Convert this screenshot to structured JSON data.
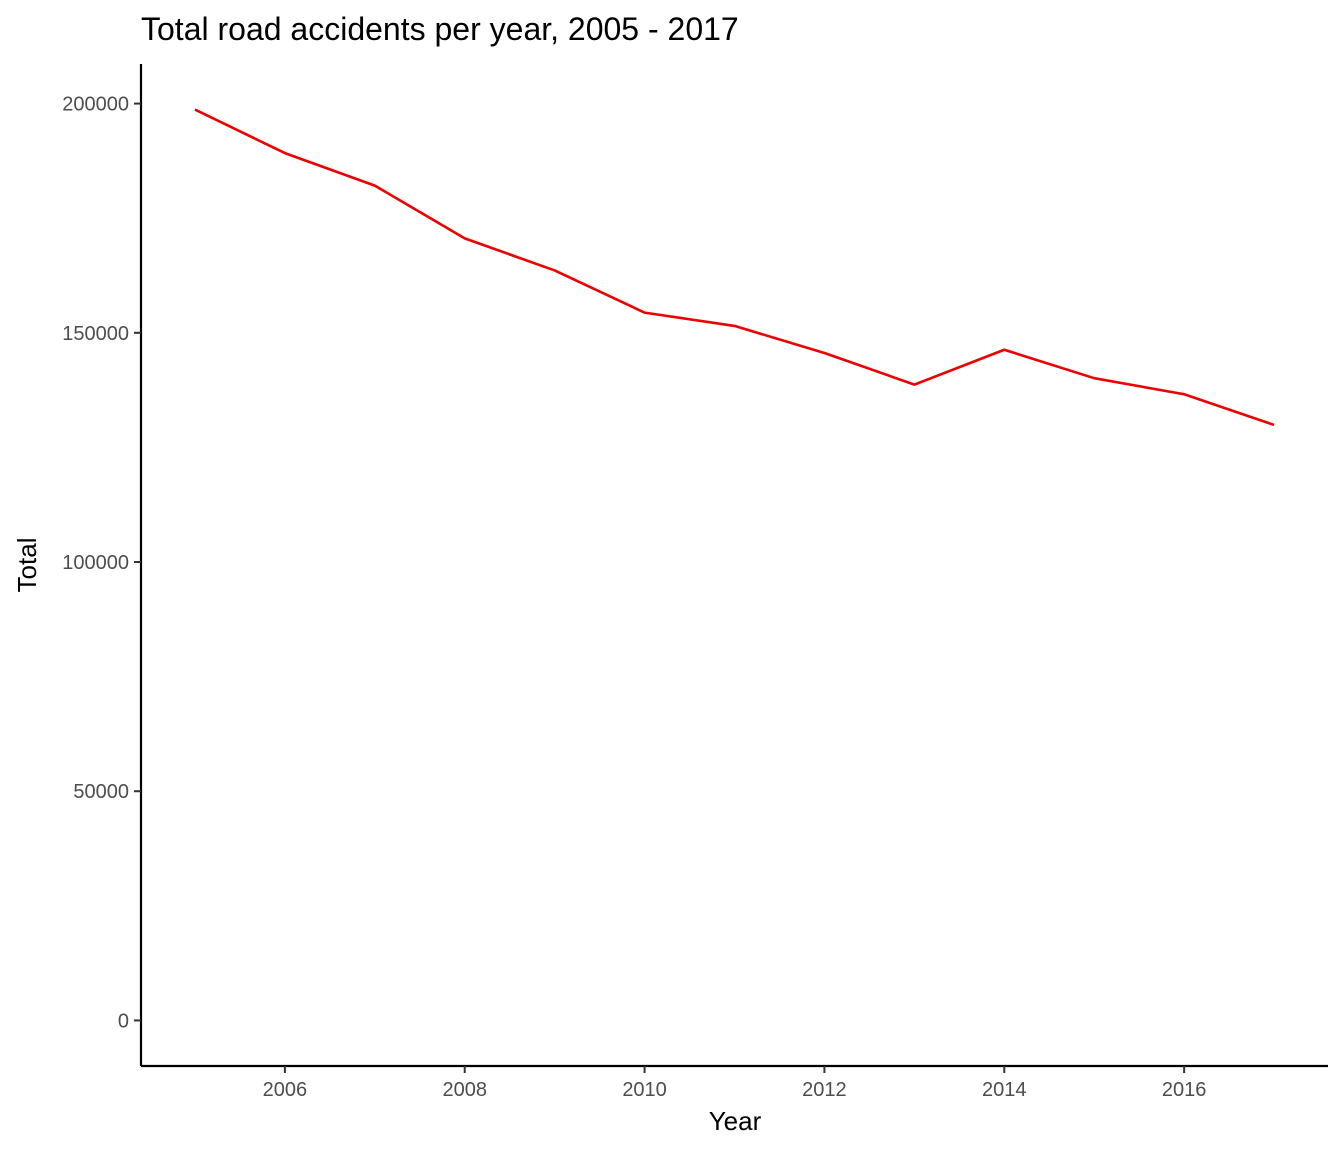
{
  "chart_data": {
    "type": "line",
    "title": "Total road accidents per year, 2005 - 2017",
    "xlabel": "Year",
    "ylabel": "Total",
    "x": [
      2005,
      2006,
      2007,
      2008,
      2009,
      2010,
      2011,
      2012,
      2013,
      2014,
      2015,
      2016,
      2017
    ],
    "series": [
      {
        "values": [
          198700,
          189200,
          182100,
          170600,
          163600,
          154400,
          151500,
          145600,
          138700,
          146300,
          140100,
          136600,
          129900
        ],
        "color": "#ee0000"
      }
    ],
    "xlim": [
      2004.4,
      2017.6
    ],
    "ylim": [
      -9935,
      208635
    ],
    "x_ticks": [
      2006,
      2008,
      2010,
      2012,
      2014,
      2016
    ],
    "y_ticks": [
      0,
      50000,
      100000,
      150000,
      200000
    ],
    "x_tick_labels": [
      "2006",
      "2008",
      "2010",
      "2012",
      "2014",
      "2016"
    ],
    "y_tick_labels": [
      "0",
      "50000",
      "100000",
      "150000",
      "200000"
    ],
    "grid": false,
    "legend": "none"
  }
}
